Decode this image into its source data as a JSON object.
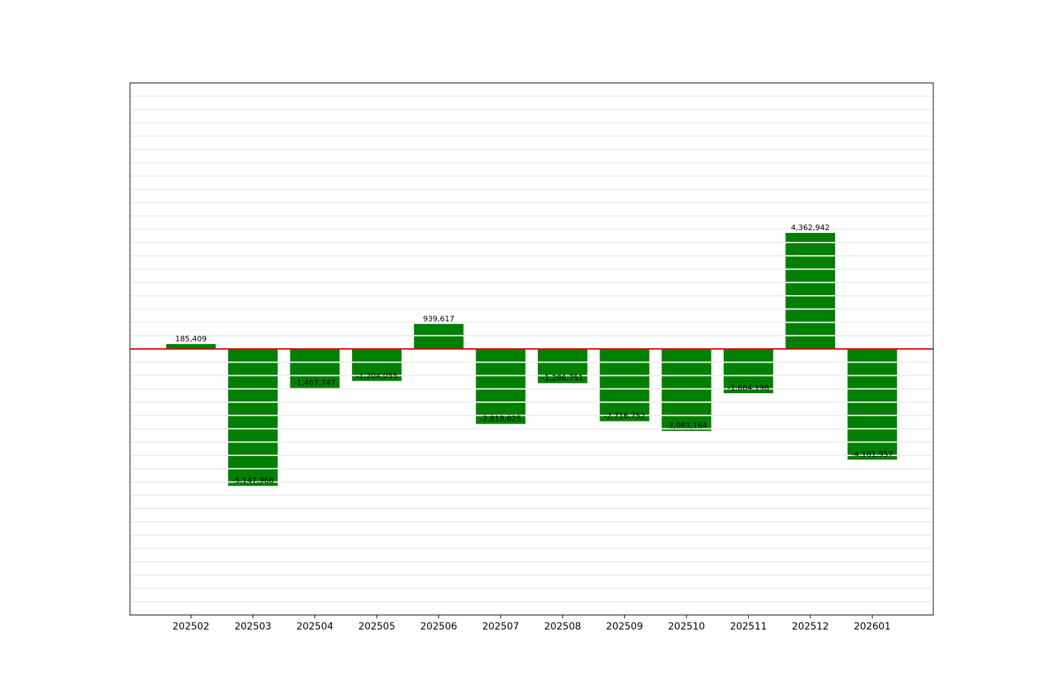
{
  "chart_data": {
    "type": "bar",
    "categories": [
      "202502",
      "202503",
      "202504",
      "202505",
      "202506",
      "202507",
      "202508",
      "202509",
      "202510",
      "202511",
      "202512",
      "202601"
    ],
    "values": [
      185409,
      -5147968,
      -1467747,
      -1204055,
      939617,
      -2819025,
      -1286751,
      -2716752,
      -3083164,
      -1664198,
      4362942,
      -4161957
    ],
    "value_labels": [
      "185,409",
      "-5,147,968",
      "-1,467,747",
      "-1,204,055",
      "939,617",
      "-2,819,025",
      "-1,286,751",
      "-2,716,752",
      "-3,083,164",
      "-1,664,198",
      "4,362,942",
      "-4,161,957"
    ],
    "color": "#008000",
    "zero_line_color": "#e00000",
    "ylim": [
      -10000000,
      10000000
    ],
    "yticks": [
      -10000000,
      -9500000,
      -9000000,
      -8500000,
      -8000000,
      -7500000,
      -7000000,
      -6500000,
      -6000000,
      -5500000,
      -5000000,
      -4500000,
      -4000000,
      -3500000,
      -3000000,
      -2500000,
      -2000000,
      -1500000,
      -1000000,
      -500000,
      0,
      500000,
      1000000,
      1500000,
      2000000,
      2500000,
      3000000,
      3500000,
      4000000,
      4500000,
      5000000,
      5500000,
      6000000,
      6500000,
      7000000,
      7500000,
      8000000,
      8500000,
      9000000,
      9500000,
      10000000
    ],
    "ytick_labels": false,
    "grid": true
  }
}
